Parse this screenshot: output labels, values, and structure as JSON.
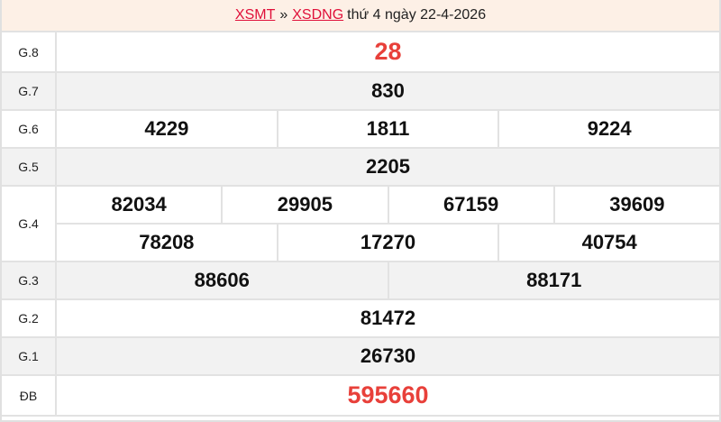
{
  "header": {
    "link1": "XSMT",
    "sep": "»",
    "link2": "XSDNG",
    "text": "thứ 4 ngày 22-4-2026"
  },
  "colors": {
    "accent": "#e8403a",
    "link": "#e0103a",
    "header_bg": "#fdf0e6"
  },
  "prizes": [
    {
      "label": "G.8",
      "rows": [
        [
          "28"
        ]
      ]
    },
    {
      "label": "G.7",
      "rows": [
        [
          "830"
        ]
      ]
    },
    {
      "label": "G.6",
      "rows": [
        [
          "4229",
          "1811",
          "9224"
        ]
      ]
    },
    {
      "label": "G.5",
      "rows": [
        [
          "2205"
        ]
      ]
    },
    {
      "label": "G.4",
      "rows": [
        [
          "82034",
          "29905",
          "67159",
          "39609"
        ],
        [
          "78208",
          "17270",
          "40754"
        ]
      ]
    },
    {
      "label": "G.3",
      "rows": [
        [
          "88606",
          "88171"
        ]
      ]
    },
    {
      "label": "G.2",
      "rows": [
        [
          "81472"
        ]
      ]
    },
    {
      "label": "G.1",
      "rows": [
        [
          "26730"
        ]
      ]
    },
    {
      "label": "ĐB",
      "rows": [
        [
          "595660"
        ]
      ]
    }
  ]
}
